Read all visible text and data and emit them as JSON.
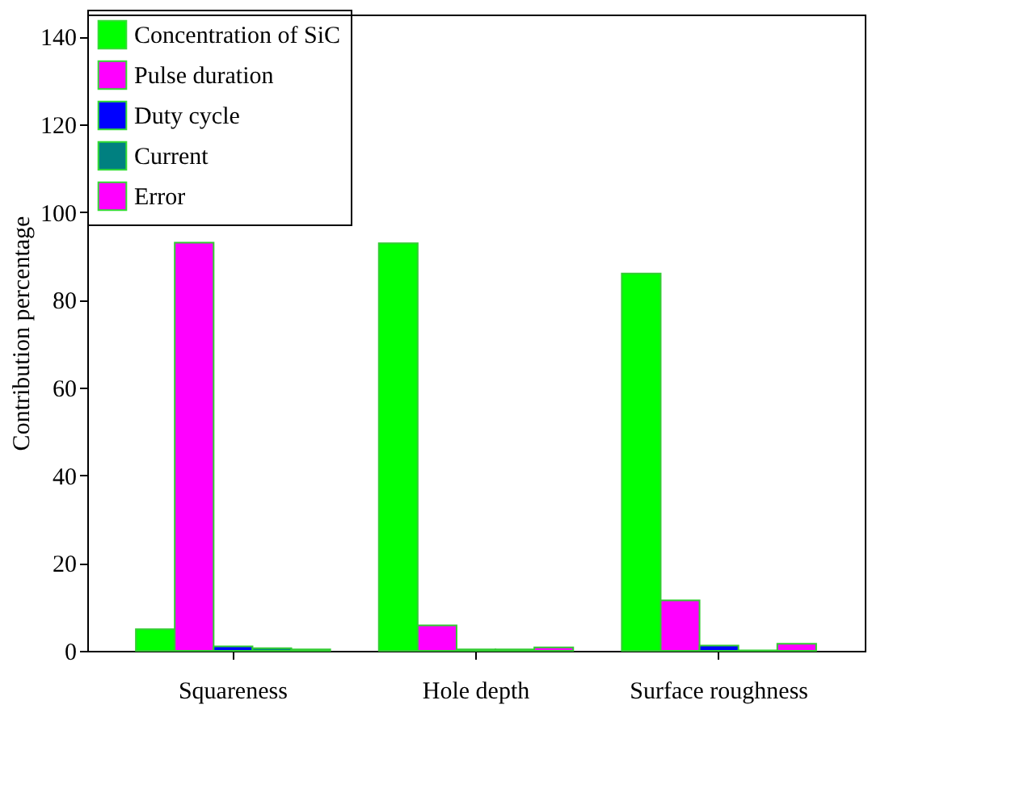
{
  "chart_data": {
    "type": "bar",
    "ylabel": "Contribution percentage",
    "categories": [
      "Squareness",
      "Hole depth",
      "Surface roughness"
    ],
    "series": [
      {
        "name": "Concentration of SiC",
        "color": "#00ff00",
        "values": [
          4.9,
          92.9,
          86
        ]
      },
      {
        "name": "Pulse duration",
        "color": "#ff00ff",
        "values": [
          93,
          5.8,
          11.5
        ]
      },
      {
        "name": "Duty cycle",
        "color": "#0000ff",
        "values": [
          1.0,
          0.3,
          1.2
        ]
      },
      {
        "name": "Current",
        "color": "#008080",
        "values": [
          0.6,
          0.3,
          0.1
        ]
      },
      {
        "name": "Error",
        "color": "#ff00ff",
        "values": [
          0.3,
          0.8,
          1.6
        ]
      }
    ],
    "ylim": [
      0,
      145
    ],
    "yticks": [
      0,
      20,
      40,
      60,
      80,
      100,
      120,
      140
    ],
    "grid": false,
    "legend": "top"
  }
}
